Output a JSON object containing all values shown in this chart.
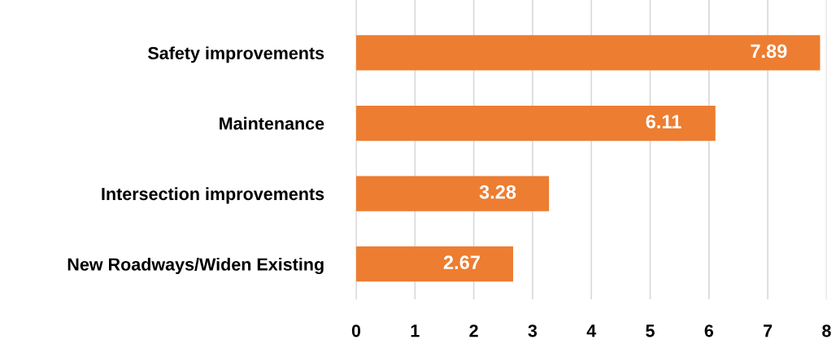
{
  "chart_data": {
    "type": "bar",
    "orientation": "horizontal",
    "categories": [
      "Safety improvements",
      "Maintenance",
      "Intersection improvements",
      "New Roadways/Widen Existing"
    ],
    "values": [
      7.89,
      6.11,
      3.28,
      2.67
    ],
    "color": "#ed7d31",
    "xlim": [
      0,
      8
    ],
    "xticks": [
      0,
      1,
      2,
      3,
      4,
      5,
      6,
      7,
      8
    ],
    "grid": "x",
    "data_labels": true
  }
}
